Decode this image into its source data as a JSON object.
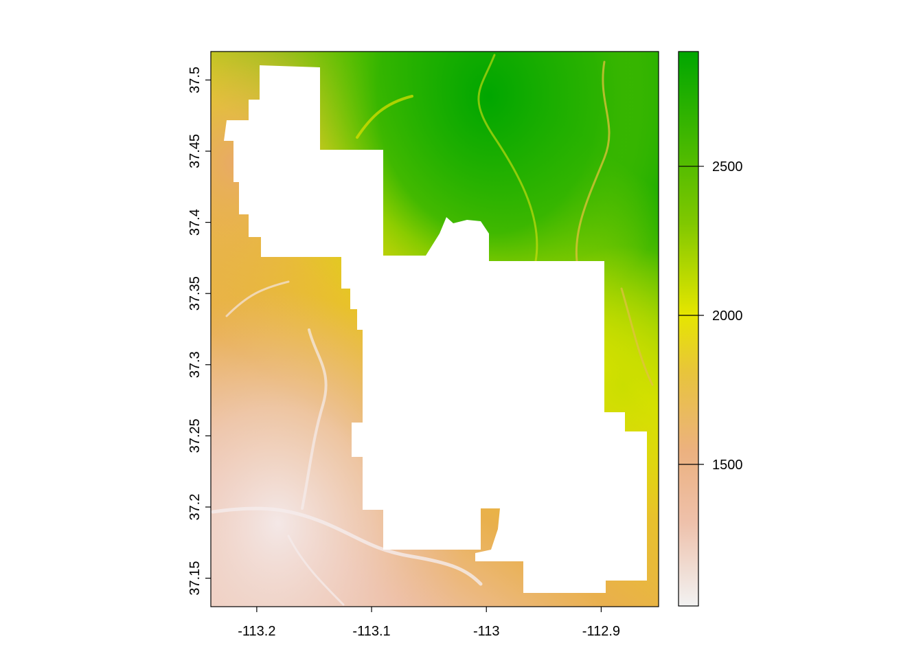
{
  "map": {
    "x_ticks": [
      "-113.2",
      "-113.1",
      "-113",
      "-112.9"
    ],
    "x_tick_values": [
      -113.2,
      -113.1,
      -113.0,
      -112.9
    ],
    "y_ticks": [
      "37.15",
      "37.2",
      "37.25",
      "37.3",
      "37.35",
      "37.4",
      "37.45",
      "37.5"
    ],
    "y_tick_values": [
      37.15,
      37.2,
      37.25,
      37.3,
      37.35,
      37.4,
      37.45,
      37.5
    ],
    "xlim": [
      -113.24,
      -112.85
    ],
    "ylim": [
      37.13,
      37.52
    ],
    "masked_region": "white (no data) interior polygon",
    "terrain_description_colors": {
      "low": "#f2f2f2",
      "low_mid": "#eab89a",
      "mid": "#e9b54a",
      "mid_high": "#e6e600",
      "high": "#00a600"
    }
  },
  "legend": {
    "ticks": [
      "1500",
      "2000",
      "2500"
    ],
    "tick_values": [
      1500,
      2000,
      2500
    ],
    "range": [
      1025,
      2885
    ],
    "gradient_stops": [
      {
        "value": 1025,
        "color": "#f2f2f2"
      },
      {
        "value": 1300,
        "color": "#eec1ab"
      },
      {
        "value": 1550,
        "color": "#ecb17f"
      },
      {
        "value": 1800,
        "color": "#e8c43c"
      },
      {
        "value": 2000,
        "color": "#e6e600"
      },
      {
        "value": 2300,
        "color": "#80c800"
      },
      {
        "value": 2885,
        "color": "#00a600"
      }
    ]
  }
}
